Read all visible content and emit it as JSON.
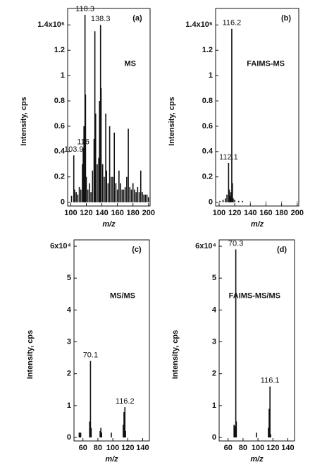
{
  "chart_data": [
    {
      "type": "bar",
      "panel": "(a)",
      "label": "MS",
      "xlabel": "m/z",
      "ylabel": "Intensity, cps",
      "color": "#111",
      "x": [
        101,
        103.9,
        105,
        107,
        109,
        111,
        113,
        115,
        116,
        117,
        118.3,
        119,
        120,
        122,
        124,
        126,
        128,
        130,
        131,
        132,
        134,
        136,
        137,
        138.3,
        139,
        141,
        143,
        145,
        146,
        148,
        150,
        152,
        154,
        156,
        158,
        160,
        162,
        164,
        166,
        168,
        170,
        172,
        174,
        176,
        178,
        180,
        182,
        184,
        186,
        188,
        190,
        192,
        194,
        196,
        198,
        200
      ],
      "values": [
        0.05,
        0.37,
        0.1,
        0.08,
        0.06,
        0.12,
        0.1,
        0.3,
        0.43,
        0.6,
        1.48,
        0.85,
        0.2,
        0.1,
        0.15,
        0.08,
        0.25,
        0.5,
        1.35,
        0.7,
        0.3,
        0.35,
        0.8,
        1.4,
        0.9,
        0.3,
        0.2,
        0.7,
        0.25,
        0.15,
        0.6,
        0.2,
        0.2,
        0.55,
        0.15,
        0.1,
        0.25,
        0.15,
        0.1,
        0.1,
        0.12,
        0.2,
        0.58,
        0.12,
        0.1,
        0.15,
        0.1,
        0.08,
        0.12,
        0.08,
        0.25,
        0.08,
        0.06,
        0.06,
        0.06,
        0.04
      ],
      "xlim": [
        96,
        202
      ],
      "ylim": [
        -0.03,
        1.53
      ],
      "xticks": [
        100,
        120,
        140,
        160,
        180,
        200
      ],
      "yticks": [
        0.0,
        0.2,
        0.4,
        0.6,
        0.8,
        1.0,
        1.2,
        {
          "value": 1.4,
          "label": "1.4x10⁶"
        }
      ],
      "annotations": [
        "118.3",
        "138.3",
        "116",
        "103.9"
      ]
    },
    {
      "type": "bar",
      "panel": "(b)",
      "label": "FAIMS-MS",
      "xlabel": "m/z",
      "ylabel": "Intensity, cps",
      "color": "#111",
      "x": [
        101,
        105,
        108,
        110,
        112.1,
        113,
        114,
        115,
        116.2,
        117,
        118,
        120,
        125,
        130,
        140,
        160,
        180,
        200
      ],
      "values": [
        0.01,
        0.02,
        0.03,
        0.06,
        0.31,
        0.1,
        0.05,
        0.08,
        1.37,
        0.15,
        0.03,
        0.02,
        0.01,
        0.01,
        0.005,
        0.005,
        0.005,
        0.005
      ],
      "xlim": [
        95.5,
        202
      ],
      "ylim": [
        -0.03,
        1.53
      ],
      "xticks": [
        100,
        120,
        140,
        160,
        180,
        200
      ],
      "yticks": [
        0.0,
        0.2,
        0.4,
        0.6,
        0.8,
        1.0,
        1.2,
        {
          "value": 1.4,
          "label": "1.4x10⁶"
        }
      ],
      "annotations": [
        "116.2",
        "112.1"
      ]
    },
    {
      "type": "bar",
      "panel": "(c)",
      "label": "MS/MS",
      "xlabel": "m/z",
      "ylabel": "Intensity, cps",
      "color": "#111",
      "x": [
        55,
        56,
        57,
        69,
        70.1,
        71,
        83,
        84,
        85,
        98,
        114,
        115,
        116.2,
        117
      ],
      "values": [
        0.15,
        0.15,
        0.15,
        0.5,
        2.4,
        0.3,
        0.2,
        0.3,
        0.15,
        0.15,
        0.4,
        0.8,
        0.95,
        0.2
      ],
      "xlim": [
        48,
        149
      ],
      "ylim": [
        -0.11,
        6.2
      ],
      "xticks": [
        60,
        80,
        100,
        120,
        140
      ],
      "yticks": [
        0,
        1,
        2,
        3,
        4,
        5,
        {
          "value": 6,
          "label": "6x10⁴"
        }
      ],
      "annotations": [
        "70.1",
        "116.2"
      ]
    },
    {
      "type": "bar",
      "panel": "(d)",
      "label": "FAIMS-MS/MS",
      "xlabel": "m/z",
      "ylabel": "Intensity, cps",
      "color": "#111",
      "x": [
        68,
        69,
        70.3,
        71,
        98,
        114,
        115,
        116.1,
        117
      ],
      "values": [
        0.4,
        0.35,
        5.9,
        0.5,
        0.15,
        0.3,
        0.9,
        1.6,
        0.1
      ],
      "xlim": [
        48,
        149
      ],
      "ylim": [
        -0.11,
        6.2
      ],
      "xticks": [
        60,
        80,
        100,
        120,
        140
      ],
      "yticks": [
        0,
        1,
        2,
        3,
        4,
        5,
        {
          "value": 6,
          "label": "6x10⁴"
        }
      ],
      "annotations": [
        "70.3",
        "116.1"
      ]
    }
  ]
}
